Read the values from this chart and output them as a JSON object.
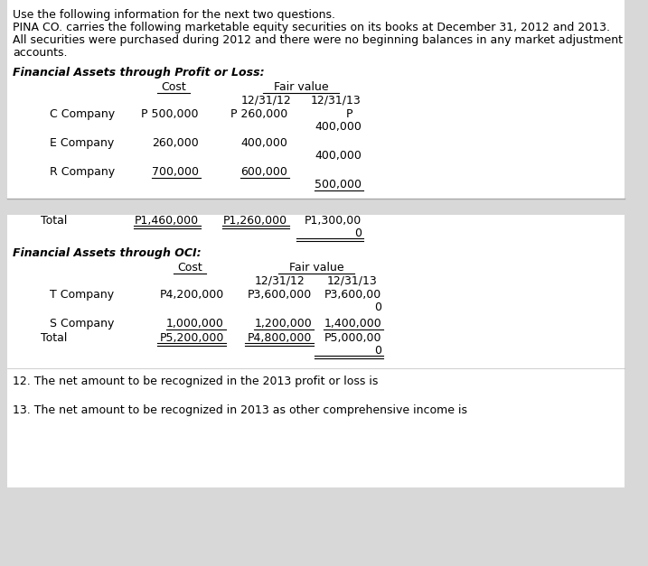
{
  "bg_color": "#d8d8d8",
  "white_color": "#ffffff",
  "intro_lines": [
    "Use the following information for the next two questions.",
    "PINA CO. carries the following marketable equity securities on its books at December 31, 2012 and 2013.",
    "All securities were purchased during 2012 and there were no beginning balances in any market adjustment",
    "accounts."
  ],
  "section1_title": "Financial Assets through Profit or Loss:",
  "section2_title": "Financial Assets through OCI:",
  "col_header_cost": "Cost",
  "col_header_fv": "Fair value",
  "col_header_date1": "12/31/12",
  "col_header_date2": "12/31/13",
  "question12": "12. The net amount to be recognized in the 2013 profit or loss is",
  "question13": "13. The net amount to be recognized in 2013 as other comprehensive income is",
  "font_size": 9.0,
  "font_size_intro": 9.0
}
